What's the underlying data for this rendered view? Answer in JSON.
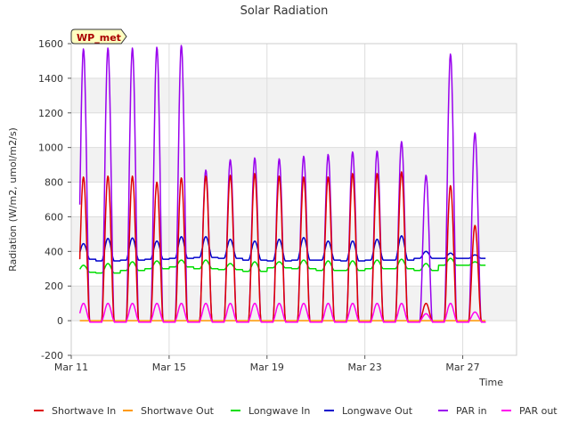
{
  "chart_data": {
    "type": "line",
    "title": "Solar Radiation",
    "xlabel": "Time",
    "ylabel": "Radiation (W/m2, umol/m2/s)",
    "site_badge": "WP_met",
    "ylim": [
      -200,
      1600
    ],
    "yticks": [
      -200,
      0,
      200,
      400,
      600,
      800,
      1000,
      1200,
      1400,
      1600
    ],
    "xlim": [
      0,
      18.2
    ],
    "xticks": [
      {
        "pos": 0,
        "label": "Mar 11"
      },
      {
        "pos": 4,
        "label": "Mar 15"
      },
      {
        "pos": 8,
        "label": "Mar 19"
      },
      {
        "pos": 12,
        "label": "Mar 23"
      },
      {
        "pos": 16,
        "label": "Mar 27"
      }
    ],
    "grid": true,
    "legend": "bottom",
    "series": [
      {
        "name": "Shortwave In",
        "color": "#dd0000",
        "daily_peaks": [
          830,
          835,
          835,
          800,
          825,
          835,
          840,
          850,
          835,
          830,
          830,
          850,
          850,
          860,
          100,
          780,
          550
        ]
      },
      {
        "name": "Shortwave Out",
        "color": "#ff9900",
        "daily_peaks": [
          0,
          0,
          0,
          0,
          0,
          0,
          0,
          0,
          0,
          0,
          0,
          0,
          0,
          0,
          0,
          0,
          0
        ]
      },
      {
        "name": "Longwave In",
        "color": "#00dd00",
        "night_level": [
          280,
          275,
          290,
          300,
          310,
          300,
          295,
          285,
          305,
          300,
          290,
          290,
          300,
          300,
          290,
          320,
          320
        ],
        "day_level": [
          320,
          330,
          340,
          345,
          350,
          350,
          330,
          340,
          340,
          350,
          345,
          345,
          350,
          355,
          330,
          360,
          340
        ]
      },
      {
        "name": "Longwave Out",
        "color": "#0000cc",
        "night_level": [
          355,
          345,
          350,
          355,
          360,
          365,
          360,
          350,
          345,
          350,
          350,
          345,
          350,
          350,
          360,
          360,
          360
        ],
        "day_level": [
          445,
          475,
          478,
          460,
          485,
          485,
          470,
          460,
          470,
          480,
          460,
          460,
          470,
          490,
          400,
          390,
          380
        ]
      },
      {
        "name": "PAR in",
        "color": "#9900ee",
        "daily_peaks": [
          1570,
          1575,
          1575,
          1580,
          1590,
          870,
          930,
          940,
          935,
          950,
          960,
          975,
          980,
          1035,
          840,
          1540,
          1085
        ]
      },
      {
        "name": "PAR out",
        "color": "#ff00ee",
        "daily_peaks": [
          100,
          100,
          100,
          100,
          100,
          100,
          100,
          100,
          100,
          100,
          100,
          100,
          100,
          100,
          40,
          100,
          50
        ]
      }
    ]
  }
}
